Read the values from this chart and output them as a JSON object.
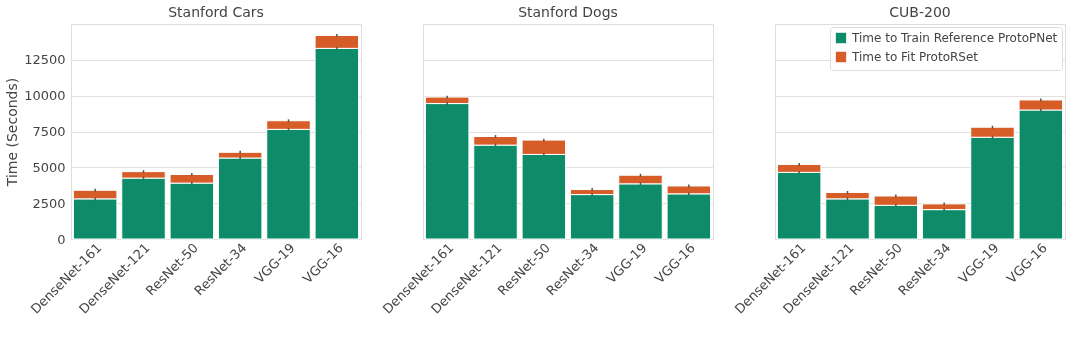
{
  "chart_data": [
    {
      "type": "bar",
      "title": "Stanford Cars",
      "ylabel": "Time (Seconds)",
      "categories": [
        "DenseNet-161",
        "DenseNet-121",
        "ResNet-50",
        "ResNet-34",
        "VGG-19",
        "VGG-16"
      ],
      "stacked": true,
      "ylim": [
        0,
        15000
      ],
      "yticks": [
        0,
        2500,
        5000,
        7500,
        10000,
        12500
      ],
      "grid": "y",
      "legend": false,
      "series": [
        {
          "color": "#0e8c6a",
          "values": [
            2800,
            4250,
            3900,
            5650,
            7650,
            13300
          ],
          "errors": [
            100,
            100,
            100,
            100,
            100,
            100
          ]
        },
        {
          "color": "#d65d27",
          "values": [
            600,
            450,
            600,
            400,
            600,
            900
          ],
          "errors": [
            100,
            100,
            100,
            100,
            100,
            100
          ]
        }
      ]
    },
    {
      "type": "bar",
      "title": "Stanford Dogs",
      "categories": [
        "DenseNet-161",
        "DenseNet-121",
        "ResNet-50",
        "ResNet-34",
        "VGG-19",
        "VGG-16"
      ],
      "stacked": true,
      "ylim": [
        0,
        15000
      ],
      "yticks": [
        0,
        2500,
        5000,
        7500,
        10000,
        12500
      ],
      "grid": "y",
      "legend": false,
      "tick_labels": "x",
      "series": [
        {
          "color": "#0e8c6a",
          "values": [
            9450,
            6550,
            5900,
            3100,
            3850,
            3150
          ],
          "errors": [
            100,
            100,
            100,
            100,
            100,
            100
          ]
        },
        {
          "color": "#d65d27",
          "values": [
            450,
            600,
            1000,
            350,
            600,
            550
          ],
          "errors": [
            100,
            100,
            100,
            100,
            100,
            100
          ]
        }
      ]
    },
    {
      "type": "bar",
      "title": "CUB-200",
      "categories": [
        "DenseNet-161",
        "DenseNet-121",
        "ResNet-50",
        "ResNet-34",
        "VGG-19",
        "VGG-16"
      ],
      "stacked": true,
      "ylim": [
        0,
        15000
      ],
      "yticks": [
        0,
        2500,
        5000,
        7500,
        10000,
        12500
      ],
      "grid": "y",
      "legend": "top right",
      "tick_labels": "x",
      "series": [
        {
          "name": "Time to Train Reference ProtoPNet",
          "color": "#0e8c6a",
          "values": [
            4650,
            2800,
            2350,
            2050,
            7100,
            9000
          ],
          "errors": [
            100,
            100,
            100,
            100,
            100,
            100
          ]
        },
        {
          "name": "Time to Fit ProtoRSet",
          "color": "#d65d27",
          "values": [
            550,
            450,
            650,
            400,
            700,
            700
          ],
          "errors": [
            100,
            100,
            100,
            100,
            100,
            100
          ]
        }
      ]
    }
  ]
}
